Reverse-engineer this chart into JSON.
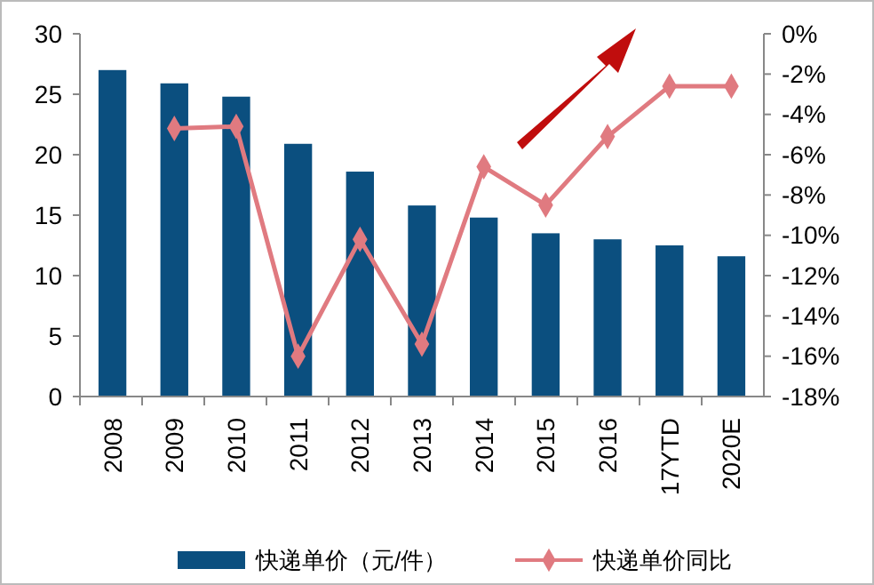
{
  "chart_data": {
    "type": "bar",
    "categories": [
      "2008",
      "2009",
      "2010",
      "2011",
      "2012",
      "2013",
      "2014",
      "2015",
      "2016",
      "17YTD",
      "2020E"
    ],
    "series": [
      {
        "name": "快递单价（元/件）",
        "color": "#0b4f7f",
        "values": [
          27.0,
          25.9,
          24.8,
          20.9,
          18.6,
          15.8,
          14.8,
          13.5,
          13.0,
          12.5,
          11.6
        ]
      },
      {
        "name": "快递单价同比",
        "type": "line",
        "axis": "y2",
        "color": "#e07a80",
        "marker": "diamond",
        "values": [
          null,
          -4.7,
          -4.6,
          -16.0,
          -10.2,
          -15.4,
          -6.6,
          -8.5,
          -5.1,
          -2.6,
          -2.6
        ]
      }
    ],
    "ylim": [
      0,
      30
    ],
    "yticks": [
      0,
      5,
      10,
      15,
      20,
      25,
      30
    ],
    "y2lim": [
      -18,
      0
    ],
    "y2ticks": [
      {
        "value": -18,
        "label": "-18%"
      },
      {
        "value": -16,
        "label": "-16%"
      },
      {
        "value": -14,
        "label": "-14%"
      },
      {
        "value": -12,
        "label": "-12%"
      },
      {
        "value": -10,
        "label": "-10%"
      },
      {
        "value": -8,
        "label": "-8%"
      },
      {
        "value": -6,
        "label": "-6%"
      },
      {
        "value": -4,
        "label": "-4%"
      },
      {
        "value": -2,
        "label": "-2%"
      },
      {
        "value": 0,
        "label": "0%"
      }
    ],
    "legend": "bottom",
    "grid": false
  }
}
